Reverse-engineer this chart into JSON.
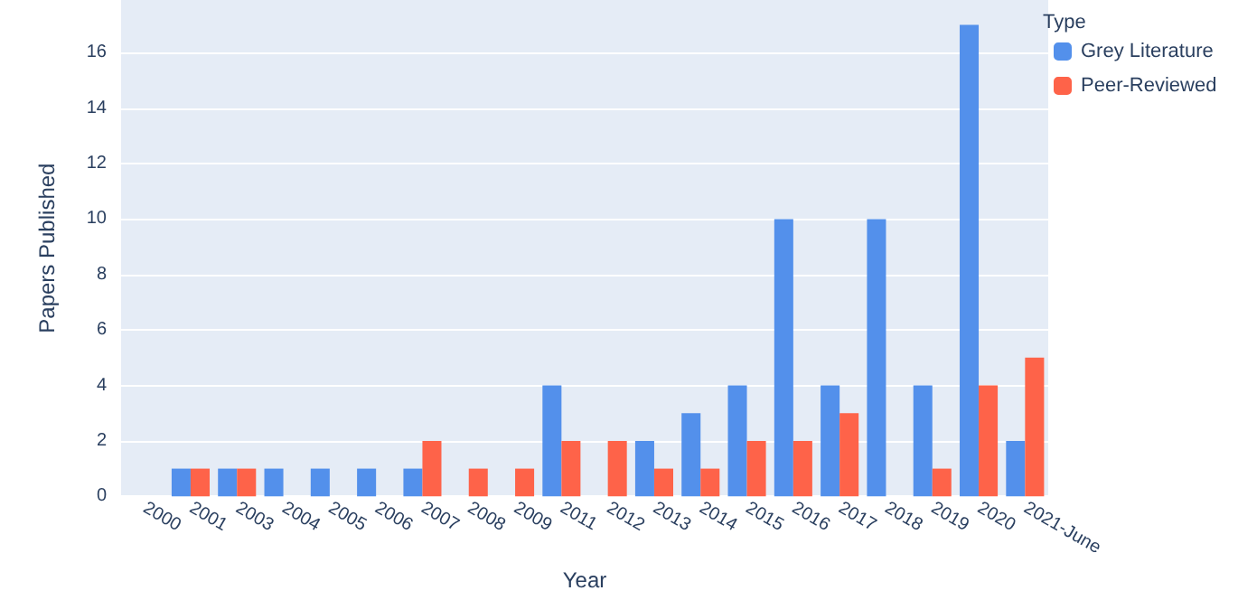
{
  "chart_data": {
    "type": "bar",
    "xlabel": "Year",
    "ylabel": "Papers Published",
    "legend_title": "Type",
    "categories": [
      "2000",
      "2001",
      "2003",
      "2004",
      "2005",
      "2006",
      "2007",
      "2008",
      "2009",
      "2011",
      "2012",
      "2013",
      "2014",
      "2015",
      "2016",
      "2017",
      "2018",
      "2019",
      "2020",
      "2021-June"
    ],
    "series": [
      {
        "name": "Grey Literature",
        "color": "#5390eb",
        "values": [
          0,
          1,
          1,
          1,
          1,
          1,
          1,
          0,
          0,
          4,
          0,
          2,
          3,
          4,
          10,
          4,
          10,
          4,
          17,
          2
        ]
      },
      {
        "name": "Peer-Reviewed",
        "color": "#fe6349",
        "values": [
          0,
          1,
          1,
          0,
          0,
          0,
          2,
          1,
          1,
          2,
          2,
          1,
          1,
          2,
          2,
          3,
          0,
          1,
          4,
          5
        ]
      }
    ],
    "ylim": [
      0,
      17.9
    ],
    "yticks": [
      0,
      2,
      4,
      6,
      8,
      10,
      12,
      14,
      16
    ],
    "grid": "y",
    "legend": "top right"
  }
}
